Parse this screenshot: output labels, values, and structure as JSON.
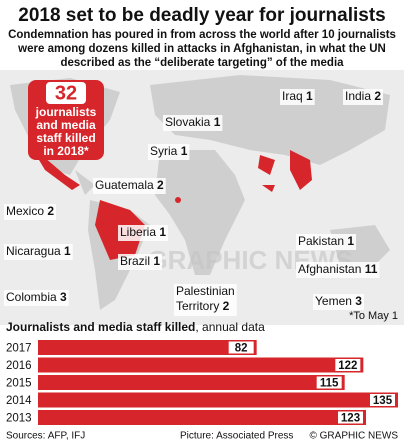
{
  "header": {
    "title": "2018 set to be deadly year for journalists",
    "subtitle_lines": [
      "Condemnation has poured in from across the world after 10 journalists",
      "were among dozens killed in attacks in Afghanistan, in what the UN",
      "described as the “deliberate targeting” of the media"
    ]
  },
  "badge": {
    "count": "32",
    "lines": [
      "journalists",
      "and media",
      "staff killed",
      "in 2018*"
    ]
  },
  "map": {
    "watermark": "GRAPHIC NEWS",
    "countries": [
      {
        "name": "Slovakia",
        "count": "1"
      },
      {
        "name": "Iraq",
        "count": "1"
      },
      {
        "name": "India",
        "count": "2"
      },
      {
        "name": "Syria",
        "count": "1"
      },
      {
        "name": "Guatemala",
        "count": "2"
      },
      {
        "name": "Mexico",
        "count": "2"
      },
      {
        "name": "Liberia",
        "count": "1"
      },
      {
        "name": "Nicaragua",
        "count": "1"
      },
      {
        "name": "Brazil",
        "count": "1"
      },
      {
        "name": "Pakistan",
        "count": "1"
      },
      {
        "name": "Afghanistan",
        "count": "11"
      },
      {
        "name": "Palestinian Territory",
        "count": "2"
      },
      {
        "name": "Yemen",
        "count": "3"
      },
      {
        "name": "Colombia",
        "count": "3"
      }
    ]
  },
  "note": "*To May 1",
  "chart_data": {
    "type": "bar",
    "orientation": "horizontal",
    "title": "Journalists and media staff killed",
    "title_note": ", annual data",
    "categories": [
      "2017",
      "2016",
      "2015",
      "2014",
      "2013"
    ],
    "values": [
      82,
      122,
      115,
      135,
      123
    ],
    "color": "#d7262b"
  },
  "footer": {
    "sources": "Sources: AFP, IFJ",
    "picture": "Picture: Associated Press",
    "credit": "© GRAPHIC NEWS"
  }
}
